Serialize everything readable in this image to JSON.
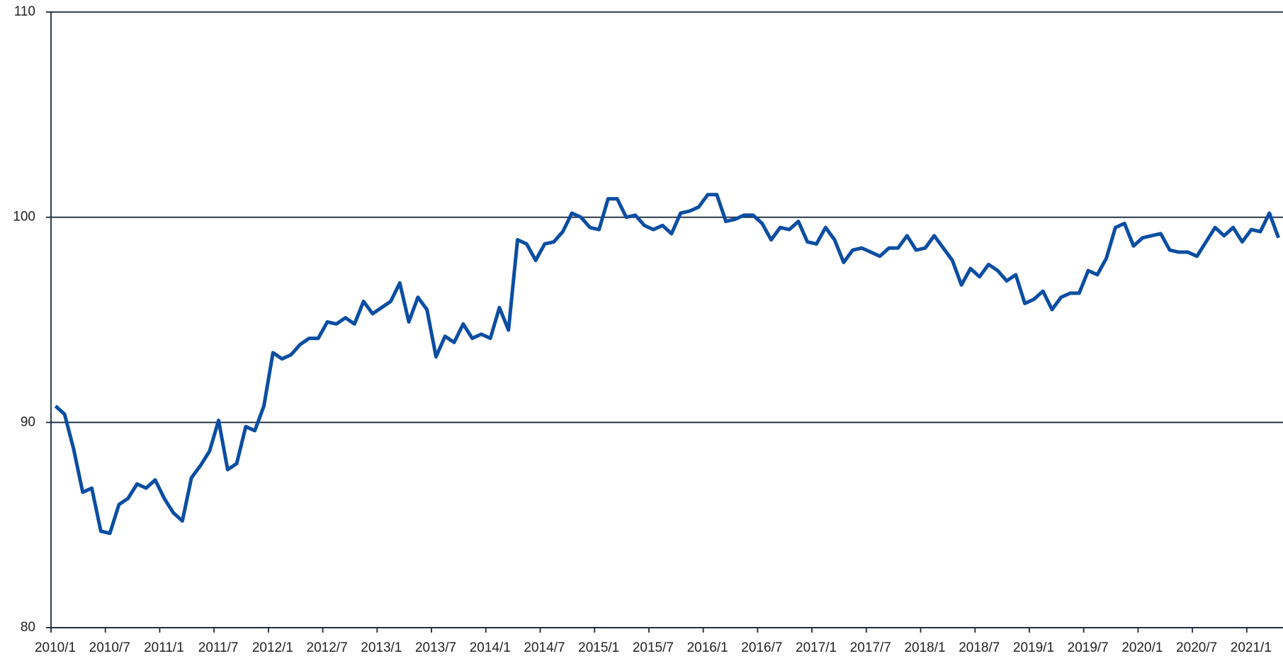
{
  "chart_data": {
    "type": "line",
    "categories": [
      "2010/1",
      null,
      null,
      null,
      null,
      null,
      "2010/7",
      null,
      null,
      null,
      null,
      null,
      "2011/1",
      null,
      null,
      null,
      null,
      null,
      "2011/7",
      null,
      null,
      null,
      null,
      null,
      "2012/1",
      null,
      null,
      null,
      null,
      null,
      "2012/7",
      null,
      null,
      null,
      null,
      null,
      "2013/1",
      null,
      null,
      null,
      null,
      null,
      "2013/7",
      null,
      null,
      null,
      null,
      null,
      "2014/1",
      null,
      null,
      null,
      null,
      null,
      "2014/7",
      null,
      null,
      null,
      null,
      null,
      "2015/1",
      null,
      null,
      null,
      null,
      null,
      "2015/7",
      null,
      null,
      null,
      null,
      null,
      "2016/1",
      null,
      null,
      null,
      null,
      null,
      "2016/7",
      null,
      null,
      null,
      null,
      null,
      "2017/1",
      null,
      null,
      null,
      null,
      null,
      "2017/7",
      null,
      null,
      null,
      null,
      null,
      "2018/1",
      null,
      null,
      null,
      null,
      null,
      "2018/7",
      null,
      null,
      null,
      null,
      null,
      "2019/1",
      null,
      null,
      null,
      null,
      null,
      "2019/7",
      null,
      null,
      null,
      null,
      null,
      "2020/1",
      null,
      null,
      null,
      null,
      null,
      "2020/7",
      null,
      null,
      null,
      null,
      null,
      "2021/1",
      null,
      null,
      null
    ],
    "series": [
      {
        "color": "#0b4ea2",
        "values": [
          90.8,
          90.4,
          88.7,
          86.6,
          86.8,
          84.7,
          84.6,
          86.0,
          86.3,
          87.0,
          86.8,
          87.2,
          86.3,
          85.6,
          85.2,
          87.3,
          87.9,
          88.6,
          90.1,
          87.7,
          88.0,
          89.8,
          89.6,
          90.8,
          93.4,
          93.1,
          93.3,
          93.8,
          94.1,
          94.1,
          94.9,
          94.8,
          95.1,
          94.8,
          95.9,
          95.3,
          95.6,
          95.9,
          96.8,
          94.9,
          96.1,
          95.5,
          93.2,
          94.2,
          93.9,
          94.8,
          94.1,
          94.3,
          94.1,
          95.6,
          94.5,
          98.9,
          98.7,
          97.9,
          98.7,
          98.8,
          99.3,
          100.2,
          100.0,
          99.5,
          99.4,
          100.9,
          100.9,
          100.0,
          100.1,
          99.6,
          99.4,
          99.6,
          99.2,
          100.2,
          100.3,
          100.5,
          101.1,
          101.1,
          99.8,
          99.9,
          100.1,
          100.1,
          99.7,
          98.9,
          99.5,
          99.4,
          99.8,
          98.8,
          98.7,
          99.5,
          98.9,
          97.8,
          98.4,
          98.5,
          98.3,
          98.1,
          98.5,
          98.5,
          99.1,
          98.4,
          98.5,
          99.1,
          98.5,
          97.9,
          96.7,
          97.5,
          97.1,
          97.7,
          97.4,
          96.9,
          97.2,
          95.8,
          96.0,
          96.4,
          95.5,
          96.1,
          96.3,
          96.3,
          97.4,
          97.2,
          98.0,
          99.5,
          99.7,
          98.6,
          99.0,
          99.1,
          99.2,
          98.4,
          98.3,
          98.3,
          98.1,
          98.8,
          99.5,
          99.1,
          99.5,
          98.8,
          99.4,
          99.3,
          100.2,
          99.0
        ]
      }
    ],
    "ylim": [
      80,
      110
    ],
    "yticks": [
      80,
      90,
      100,
      110
    ],
    "grid": true
  }
}
